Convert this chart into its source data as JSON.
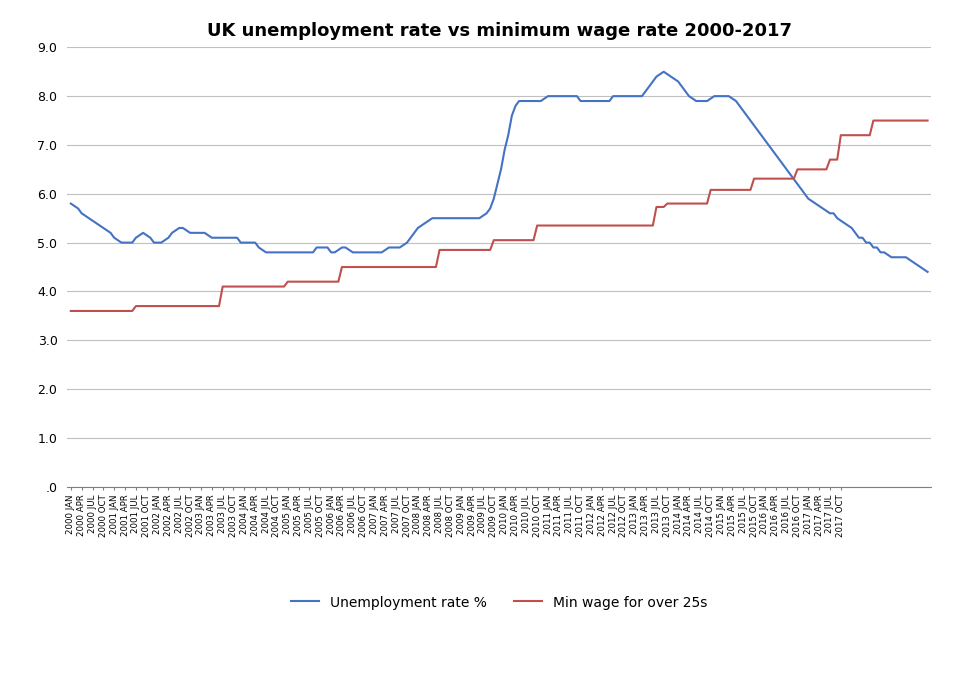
{
  "title": "UK unemployment rate vs minimum wage rate 2000-2017",
  "unemployment": [
    5.8,
    5.75,
    5.7,
    5.6,
    5.55,
    5.5,
    5.45,
    5.4,
    5.35,
    5.3,
    5.25,
    5.2,
    5.1,
    5.05,
    5.0,
    5.0,
    5.0,
    5.0,
    5.1,
    5.15,
    5.2,
    5.15,
    5.1,
    5.0,
    5.0,
    5.0,
    5.05,
    5.1,
    5.2,
    5.25,
    5.3,
    5.3,
    5.25,
    5.2,
    5.2,
    5.2,
    5.2,
    5.2,
    5.15,
    5.1,
    5.1,
    5.1,
    5.1,
    5.1,
    5.1,
    5.1,
    5.1,
    5.0,
    5.0,
    5.0,
    5.0,
    5.0,
    4.9,
    4.85,
    4.8,
    4.8,
    4.8,
    4.8,
    4.8,
    4.8,
    4.8,
    4.8,
    4.8,
    4.8,
    4.8,
    4.8,
    4.8,
    4.8,
    4.9,
    4.9,
    4.9,
    4.9,
    4.8,
    4.8,
    4.85,
    4.9,
    4.9,
    4.85,
    4.8,
    4.8,
    4.8,
    4.8,
    4.8,
    4.8,
    4.8,
    4.8,
    4.8,
    4.85,
    4.9,
    4.9,
    4.9,
    4.9,
    4.95,
    5.0,
    5.1,
    5.2,
    5.3,
    5.35,
    5.4,
    5.45,
    5.5,
    5.5,
    5.5,
    5.5,
    5.5,
    5.5,
    5.5,
    5.5,
    5.5,
    5.5,
    5.5,
    5.5,
    5.5,
    5.5,
    5.55,
    5.6,
    5.7,
    5.9,
    6.2,
    6.5,
    6.9,
    7.2,
    7.6,
    7.8,
    7.9,
    7.9,
    7.9,
    7.9,
    7.9,
    7.9,
    7.9,
    7.95,
    8.0,
    8.0,
    8.0,
    8.0,
    8.0,
    8.0,
    8.0,
    8.0,
    8.0,
    7.9,
    7.9,
    7.9,
    7.9,
    7.9,
    7.9,
    7.9,
    7.9,
    7.9,
    8.0,
    8.0,
    8.0,
    8.0,
    8.0,
    8.0,
    8.0,
    8.0,
    8.0,
    8.1,
    8.2,
    8.3,
    8.4,
    8.45,
    8.5,
    8.45,
    8.4,
    8.35,
    8.3,
    8.2,
    8.1,
    8.0,
    7.95,
    7.9,
    7.9,
    7.9,
    7.9,
    7.95,
    8.0,
    8.0,
    8.0,
    8.0,
    8.0,
    7.95,
    7.9,
    7.8,
    7.7,
    7.6,
    7.5,
    7.4,
    7.3,
    7.2,
    7.1,
    7.0,
    6.9,
    6.8,
    6.7,
    6.6,
    6.5,
    6.4,
    6.3,
    6.2,
    6.1,
    6.0,
    5.9,
    5.85,
    5.8,
    5.75,
    5.7,
    5.65,
    5.6,
    5.6,
    5.5,
    5.45,
    5.4,
    5.35,
    5.3,
    5.2,
    5.1,
    5.1,
    5.0,
    5.0,
    4.9,
    4.9,
    4.8,
    4.8,
    4.75,
    4.7,
    4.7,
    4.7,
    4.7,
    4.7,
    4.65,
    4.6,
    4.55,
    4.5,
    4.45,
    4.4
  ],
  "min_wage": [
    3.6,
    3.6,
    3.6,
    3.6,
    3.6,
    3.6,
    3.6,
    3.6,
    3.6,
    3.6,
    3.6,
    3.6,
    3.6,
    3.6,
    3.6,
    3.6,
    3.6,
    3.6,
    3.7,
    3.7,
    3.7,
    3.7,
    3.7,
    3.7,
    3.7,
    3.7,
    3.7,
    3.7,
    3.7,
    3.7,
    3.7,
    3.7,
    3.7,
    3.7,
    3.7,
    3.7,
    3.7,
    3.7,
    3.7,
    3.7,
    3.7,
    3.7,
    4.1,
    4.1,
    4.1,
    4.1,
    4.1,
    4.1,
    4.1,
    4.1,
    4.1,
    4.1,
    4.1,
    4.1,
    4.1,
    4.1,
    4.1,
    4.1,
    4.1,
    4.1,
    4.2,
    4.2,
    4.2,
    4.2,
    4.2,
    4.2,
    4.2,
    4.2,
    4.2,
    4.2,
    4.2,
    4.2,
    4.2,
    4.2,
    4.2,
    4.5,
    4.5,
    4.5,
    4.5,
    4.5,
    4.5,
    4.5,
    4.5,
    4.5,
    4.5,
    4.5,
    4.5,
    4.5,
    4.5,
    4.5,
    4.5,
    4.5,
    4.5,
    4.5,
    4.5,
    4.5,
    4.5,
    4.5,
    4.5,
    4.5,
    4.5,
    4.5,
    4.85,
    4.85,
    4.85,
    4.85,
    4.85,
    4.85,
    4.85,
    4.85,
    4.85,
    4.85,
    4.85,
    4.85,
    4.85,
    4.85,
    4.85,
    5.05,
    5.05,
    5.05,
    5.05,
    5.05,
    5.05,
    5.05,
    5.05,
    5.05,
    5.05,
    5.05,
    5.05,
    5.35,
    5.35,
    5.35,
    5.35,
    5.35,
    5.35,
    5.35,
    5.35,
    5.35,
    5.35,
    5.35,
    5.35,
    5.35,
    5.35,
    5.35,
    5.35,
    5.35,
    5.35,
    5.35,
    5.35,
    5.35,
    5.35,
    5.35,
    5.35,
    5.35,
    5.35,
    5.35,
    5.35,
    5.35,
    5.35,
    5.35,
    5.35,
    5.35,
    5.73,
    5.73,
    5.73,
    5.8,
    5.8,
    5.8,
    5.8,
    5.8,
    5.8,
    5.8,
    5.8,
    5.8,
    5.8,
    5.8,
    5.8,
    6.08,
    6.08,
    6.08,
    6.08,
    6.08,
    6.08,
    6.08,
    6.08,
    6.08,
    6.08,
    6.08,
    6.08,
    6.31,
    6.31,
    6.31,
    6.31,
    6.31,
    6.31,
    6.31,
    6.31,
    6.31,
    6.31,
    6.31,
    6.31,
    6.5,
    6.5,
    6.5,
    6.5,
    6.5,
    6.5,
    6.5,
    6.5,
    6.5,
    6.7,
    6.7,
    6.7,
    7.2,
    7.2,
    7.2,
    7.2,
    7.2,
    7.2,
    7.2,
    7.2,
    7.2,
    7.5,
    7.5,
    7.5,
    7.5,
    7.5,
    7.5,
    7.5,
    7.5,
    7.5,
    7.5,
    7.5,
    7.5,
    7.5,
    7.5,
    7.5,
    7.5,
    7.5,
    7.5
  ],
  "unemployment_color": "#4472C4",
  "min_wage_color": "#C0504D",
  "legend_unemployment": "Unemployment rate %",
  "legend_min_wage": "Min wage for over 25s",
  "ylim_min": 0.0,
  "ylim_max": 9.0,
  "yticks": [
    0.0,
    1.0,
    2.0,
    3.0,
    4.0,
    5.0,
    6.0,
    7.0,
    8.0,
    9.0
  ],
  "months_per_year": 12,
  "start_year": 2000,
  "end_year": 2017,
  "quarters": [
    "JAN",
    "APR",
    "JUL",
    "OCT"
  ]
}
